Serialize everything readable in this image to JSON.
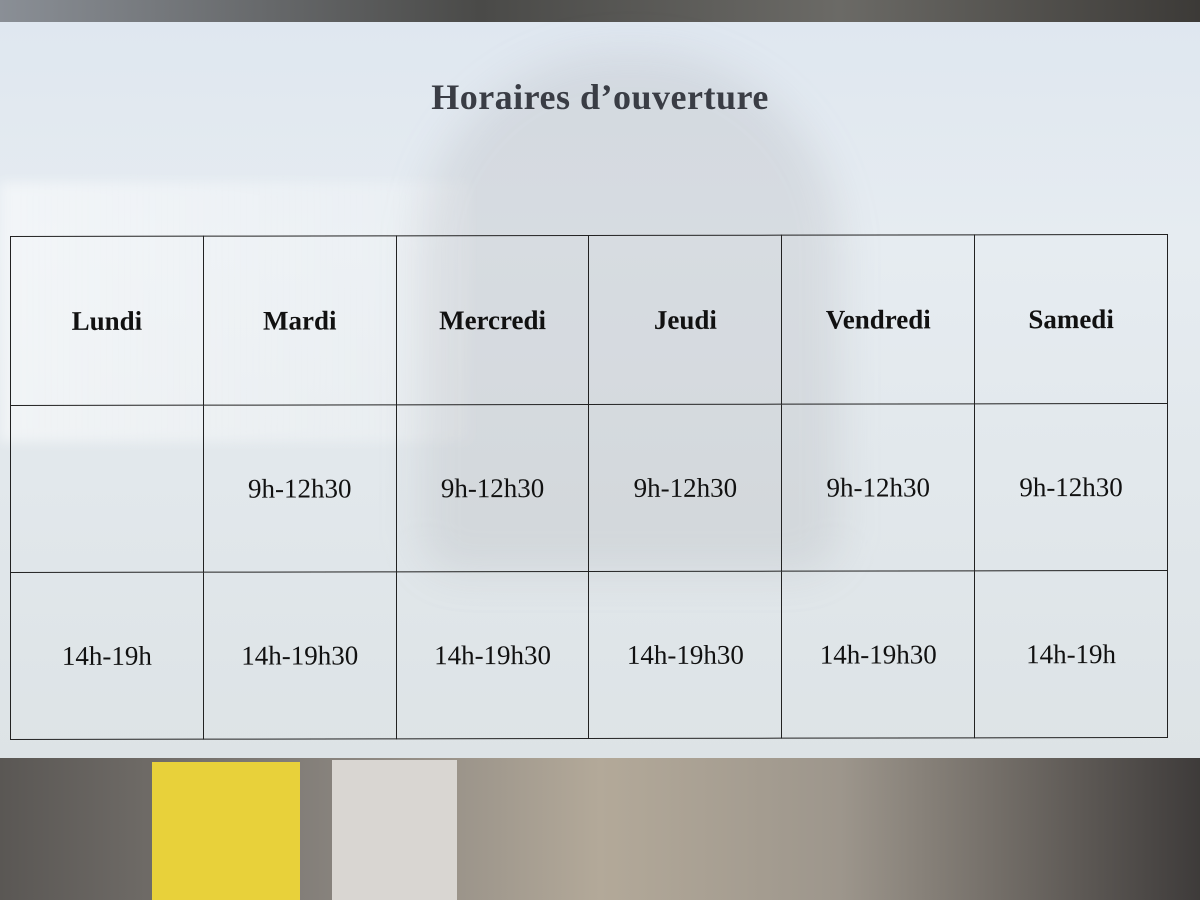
{
  "sign": {
    "title": "Horaires d’ouverture",
    "days": [
      "Lundi",
      "Mardi",
      "Mercredi",
      "Jeudi",
      "Vendredi",
      "Samedi"
    ],
    "morning": [
      "",
      "9h-12h30",
      "9h-12h30",
      "9h-12h30",
      "9h-12h30",
      "9h-12h30"
    ],
    "afternoon": [
      "14h-19h",
      "14h-19h30",
      "14h-19h30",
      "14h-19h30",
      "14h-19h30",
      "14h-19h"
    ]
  }
}
